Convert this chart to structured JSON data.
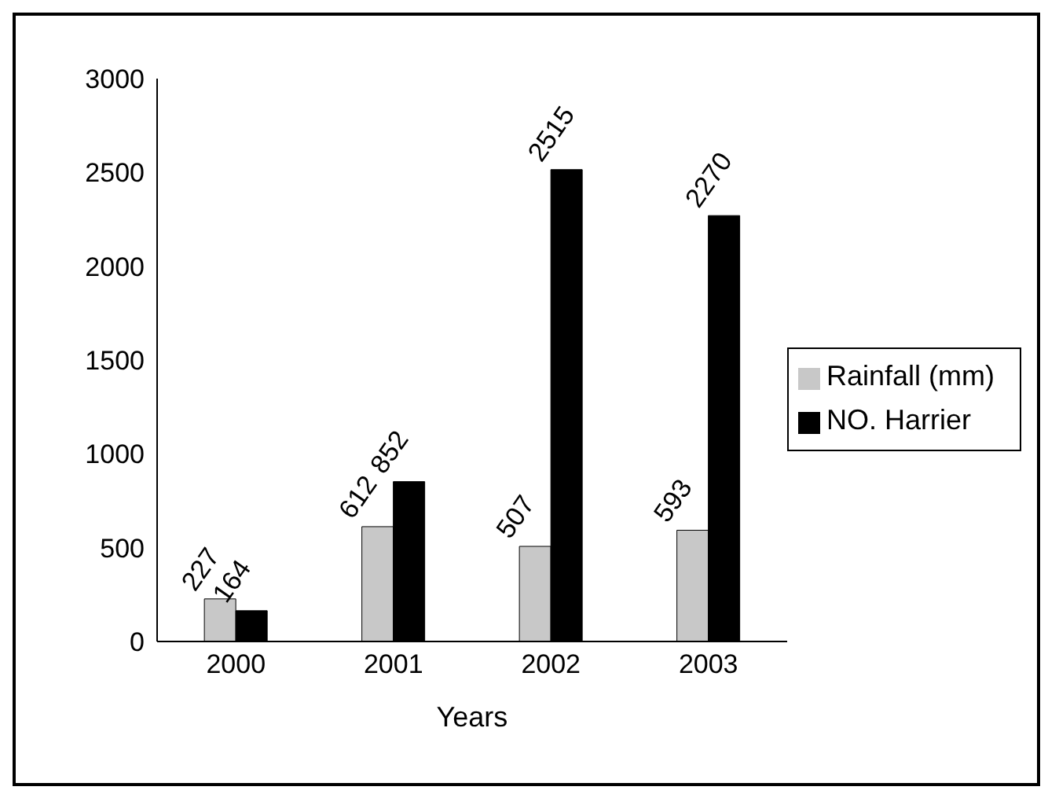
{
  "chart_data": {
    "type": "bar",
    "xlabel": "Years",
    "categories": [
      "2000",
      "2001",
      "2002",
      "2003"
    ],
    "series": [
      {
        "name": "Rainfall (mm)",
        "color": "#c8c8c8",
        "values": [
          227,
          612,
          507,
          593
        ]
      },
      {
        "name": "NO. Harrier",
        "color": "#000000",
        "values": [
          164,
          852,
          2515,
          2270
        ]
      }
    ],
    "ylim": [
      0,
      3000
    ],
    "yticks": [
      0,
      500,
      1000,
      1500,
      2000,
      2500,
      3000
    ],
    "grid": false,
    "legend": "right",
    "data_labels": true
  }
}
